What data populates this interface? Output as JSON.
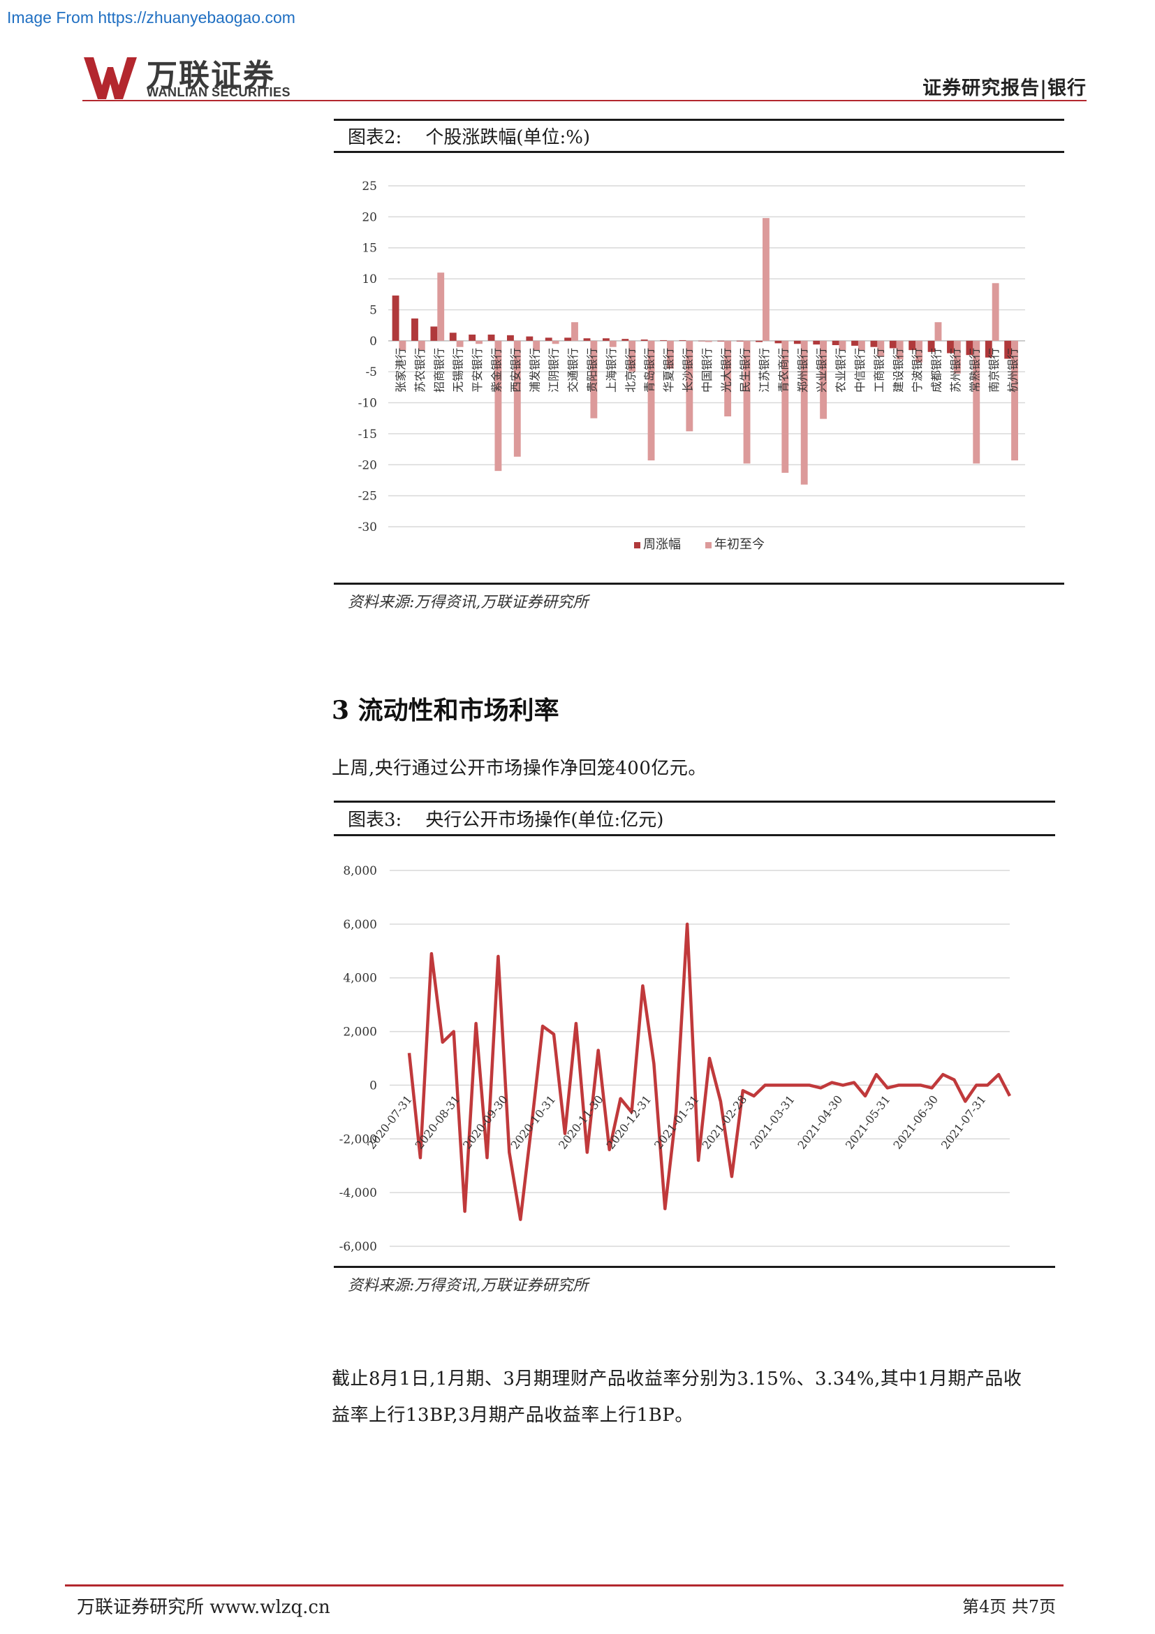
{
  "watermark": "Image From https://zhuanyebaogao.com",
  "header": {
    "logo_cn": "万联证券",
    "logo_en": "WANLIAN SECURITIES",
    "report_type": "证券研究报告|银行"
  },
  "figure2": {
    "label": "图表2:",
    "title": "个股涨跌幅(单位:%)",
    "source": "资料来源:万得资讯,万联证券研究所"
  },
  "section": {
    "heading": "3 流动性和市场利率",
    "intro": "上周,央行通过公开市场操作净回笼400亿元。"
  },
  "figure3": {
    "label": "图表3:",
    "title": "央行公开市场操作(单位:亿元)",
    "source": "资料来源:万得资讯,万联证券研究所"
  },
  "paragraph": {
    "line1": "截止8月1日,1月期、3月期理财产品收益率分别为3.15%、3.34%,其中1月期产品收",
    "line2": "益率上行13BP,3月期产品收益率上行1BP。"
  },
  "footer": {
    "left": "万联证券研究所 www.wlzq.cn",
    "right": "第4页 共7页"
  },
  "colors": {
    "brand_red": "#b3272e",
    "weekly_bar": "#b0393b",
    "ytd_bar": "#dc9a9a",
    "line": "#c0393b"
  },
  "chart_data": [
    {
      "type": "bar",
      "ylim": [
        -30,
        25
      ],
      "yticks": [
        25,
        20,
        15,
        10,
        5,
        0,
        -5,
        -10,
        -15,
        -20,
        -25,
        -30
      ],
      "grid": true,
      "legend_position": "bottom",
      "categories": [
        "张家港行",
        "苏农银行",
        "招商银行",
        "无锡银行",
        "平安银行",
        "紫金银行",
        "西安银行",
        "浦发银行",
        "江阴银行",
        "交通银行",
        "贵阳银行",
        "上海银行",
        "北京银行",
        "青岛银行",
        "华夏银行",
        "长沙银行",
        "中国银行",
        "光大银行",
        "民生银行",
        "江苏银行",
        "青农商行",
        "郑州银行",
        "兴业银行",
        "农业银行",
        "中信银行",
        "工商银行",
        "建设银行",
        "宁波银行",
        "成都银行",
        "苏州银行",
        "常熟银行",
        "南京银行",
        "杭州银行"
      ],
      "series": [
        {
          "name": "周涨幅",
          "values": [
            7.3,
            3.6,
            2.3,
            1.3,
            1.0,
            1.0,
            0.9,
            0.7,
            0.5,
            0.5,
            0.4,
            0.4,
            0.3,
            0.2,
            0.1,
            0.1,
            0.0,
            -0.1,
            -0.1,
            -0.2,
            -0.4,
            -0.5,
            -0.6,
            -0.7,
            -0.8,
            -1.0,
            -1.2,
            -1.5,
            -1.8,
            -2.0,
            -2.3,
            -2.7,
            -2.9
          ]
        },
        {
          "name": "年初至今",
          "values": [
            -1.5,
            -1.5,
            11.0,
            -1.0,
            -0.5,
            -21.0,
            -18.7,
            -1.5,
            -0.5,
            3.0,
            -12.5,
            -1.0,
            -5.0,
            -19.3,
            -4.5,
            -14.6,
            -0.2,
            -12.2,
            -19.8,
            19.8,
            -21.3,
            -23.2,
            -12.6,
            -1.5,
            -1.5,
            -2.5,
            -3.0,
            -3.5,
            3.0,
            -5.3,
            -19.8,
            9.3,
            -19.3
          ]
        }
      ]
    },
    {
      "type": "line",
      "ylim": [
        -6000,
        8000
      ],
      "yticks": [
        "8,000",
        "6,000",
        "4,000",
        "2,000",
        "0",
        "-2,000",
        "-4,000",
        "-6,000"
      ],
      "ytick_values": [
        8000,
        6000,
        4000,
        2000,
        0,
        -2000,
        -4000,
        -6000
      ],
      "grid": true,
      "xticks": [
        "2020-07-31",
        "2020-08-31",
        "2020-09-30",
        "2020-10-31",
        "2020-11-30",
        "2020-12-31",
        "2021-01-31",
        "2021-02-28",
        "2021-03-31",
        "2021-04-30",
        "2021-05-31",
        "2021-06-30",
        "2021-07-31"
      ],
      "series": [
        {
          "name": "",
          "values": [
            1200,
            -2700,
            4900,
            1600,
            2000,
            -4700,
            2300,
            -2700,
            4800,
            -2500,
            -5000,
            -1500,
            2200,
            1900,
            -1800,
            2300,
            -2500,
            1300,
            -2400,
            -500,
            -1000,
            3700,
            800,
            -4600,
            -1000,
            6000,
            -2800,
            1000,
            -600,
            -3400,
            -200,
            -400,
            0,
            0,
            0,
            0,
            0,
            -100,
            100,
            0,
            100,
            -400,
            400,
            -100,
            0,
            0,
            0,
            -100,
            400,
            200,
            -600,
            0,
            0,
            400,
            -400
          ]
        }
      ]
    }
  ]
}
